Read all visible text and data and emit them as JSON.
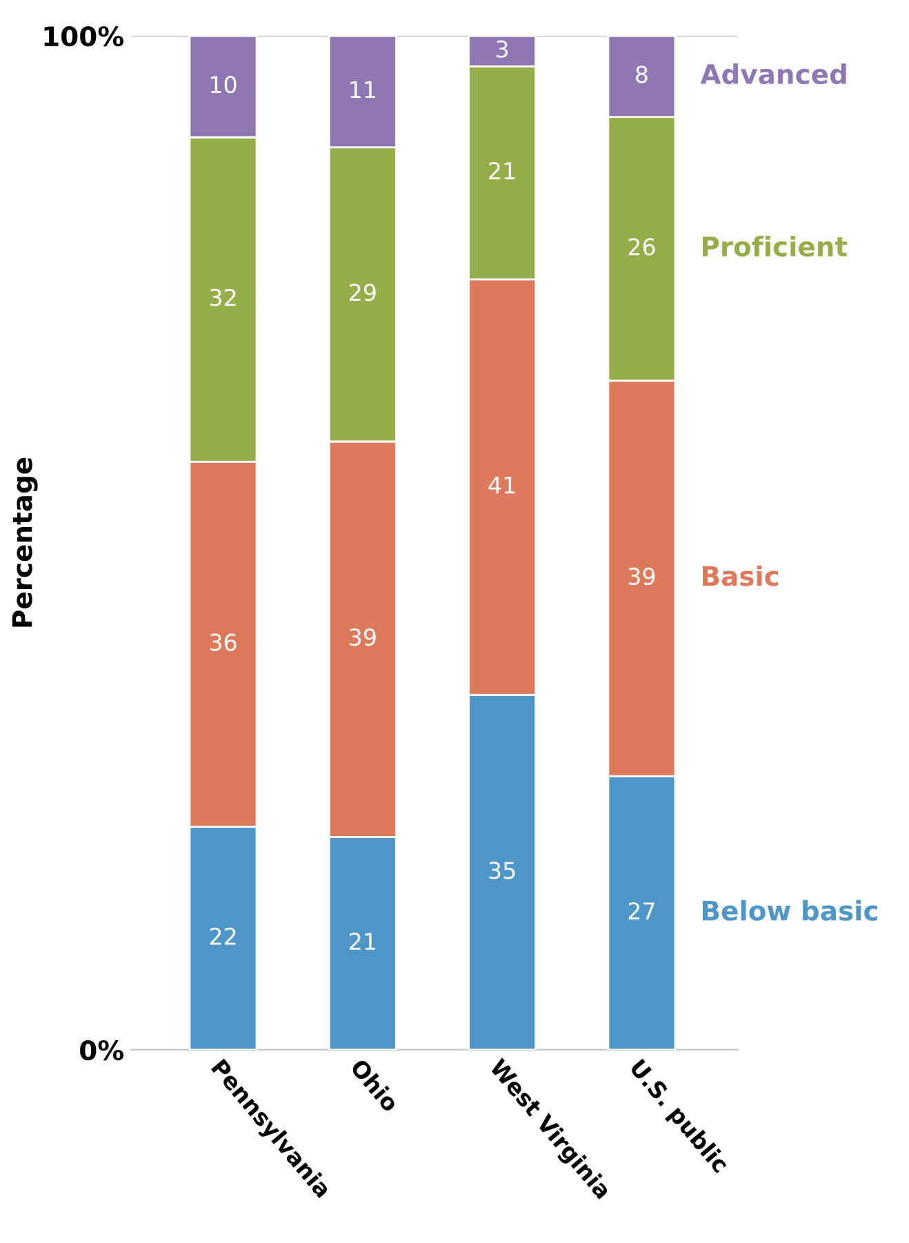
{
  "chart_data": {
    "type": "bar",
    "stacked": true,
    "ylabel": "Percentage",
    "categories": [
      "Pennsylvania",
      "Ohio",
      "West Virginia",
      "U.S. public"
    ],
    "series": [
      {
        "name": "Below basic",
        "color": "#4e96c8",
        "values": [
          22,
          21,
          35,
          27
        ]
      },
      {
        "name": "Basic",
        "color": "#de7a5c",
        "values": [
          36,
          39,
          41,
          39
        ]
      },
      {
        "name": "Proficient",
        "color": "#95ae4a",
        "values": [
          32,
          29,
          21,
          26
        ]
      },
      {
        "name": "Advanced",
        "color": "#8f77b4",
        "values": [
          10,
          11,
          3,
          8
        ]
      }
    ],
    "ylim": [
      0,
      100
    ],
    "yticks": [
      {
        "value": 0,
        "label": "0%"
      },
      {
        "value": 100,
        "label": "100%"
      }
    ],
    "grid": "y",
    "data_labels": true,
    "legend": false
  }
}
